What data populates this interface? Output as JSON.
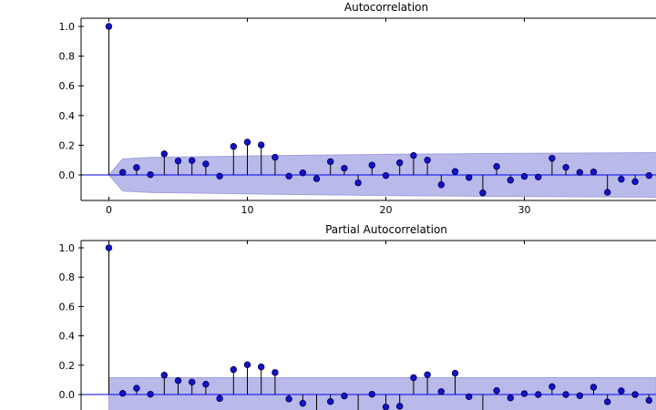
{
  "figure": {
    "background": "#ffffff",
    "colors": {
      "marker": "#1414cc",
      "marker_edge": "#000066",
      "stem": "#000000",
      "zero_line": "#0000ff",
      "band_fill": "#b9b9ea",
      "band_edge": "#a2a2dc",
      "spine": "#000000",
      "text": "#000000"
    }
  },
  "chart_data": [
    {
      "id": "acf",
      "type": "stem",
      "title": "Autocorrelation",
      "x": [
        0,
        1,
        2,
        3,
        4,
        5,
        6,
        7,
        8,
        9,
        10,
        11,
        12,
        13,
        14,
        15,
        16,
        17,
        18,
        19,
        20,
        21,
        22,
        23,
        24,
        25,
        26,
        27,
        28,
        29,
        30,
        31,
        32,
        33,
        34,
        35,
        36,
        37,
        38,
        39
      ],
      "values": [
        1.0,
        0.017,
        0.05,
        0.002,
        0.142,
        0.094,
        0.097,
        0.074,
        -0.008,
        0.192,
        0.221,
        0.202,
        0.119,
        -0.008,
        0.014,
        -0.025,
        0.09,
        0.045,
        -0.053,
        0.066,
        -0.004,
        0.082,
        0.131,
        0.1,
        -0.066,
        0.023,
        -0.017,
        -0.121,
        0.057,
        -0.035,
        -0.01,
        -0.014,
        0.112,
        0.051,
        0.017,
        0.02,
        -0.117,
        -0.029,
        -0.045,
        -0.004
      ],
      "xticks": {
        "values": [
          0,
          10,
          20,
          30
        ],
        "labels": [
          "0",
          "10",
          "20",
          "30"
        ],
        "labels_visible": true
      },
      "yticks": {
        "values": [
          1.0,
          0.8,
          0.6,
          0.4,
          0.2,
          0.0
        ],
        "labels": [
          "1.0",
          "0.8",
          "0.6",
          "0.4",
          "0.2",
          "0.0"
        ]
      },
      "xlim_visible": [
        -2.0,
        39.5
      ],
      "ylim_visible": [
        -0.17,
        1.06
      ],
      "grid": false,
      "legend": null,
      "confidence_band": {
        "shape": "wedge",
        "half_width_points": [
          [
            0,
            0
          ],
          [
            1,
            0.108
          ],
          [
            3,
            0.118
          ],
          [
            6,
            0.122
          ],
          [
            12,
            0.13
          ],
          [
            20,
            0.139
          ],
          [
            27,
            0.144
          ],
          [
            39.6,
            0.15
          ]
        ]
      }
    },
    {
      "id": "pacf",
      "type": "stem",
      "title": "Partial Autocorrelation",
      "x": [
        0,
        1,
        2,
        3,
        4,
        5,
        6,
        7,
        8,
        9,
        10,
        11,
        12,
        13,
        14,
        15,
        16,
        17,
        18,
        19,
        20,
        21,
        22,
        23,
        24,
        25,
        26,
        27,
        28,
        29,
        30,
        31,
        32,
        33,
        34,
        35,
        36,
        37,
        38,
        39
      ],
      "values": [
        1.0,
        0.008,
        0.043,
        0.002,
        0.132,
        0.095,
        0.085,
        0.07,
        -0.027,
        0.17,
        0.203,
        0.188,
        0.15,
        -0.03,
        -0.06,
        -0.13,
        -0.048,
        -0.01,
        -0.15,
        0.002,
        -0.085,
        -0.08,
        0.115,
        0.135,
        0.02,
        0.145,
        -0.015,
        -0.14,
        0.027,
        -0.023,
        0.006,
        0.0,
        0.054,
        0.0,
        -0.008,
        0.05,
        -0.05,
        0.025,
        0.0,
        -0.04
      ],
      "xticks": {
        "values": [
          0,
          10,
          20,
          30
        ],
        "labels": [
          "0",
          "10",
          "20",
          "30"
        ],
        "labels_visible": false
      },
      "yticks": {
        "values": [
          1.0,
          0.8,
          0.6,
          0.4,
          0.2,
          0.0
        ],
        "labels": [
          "1.0",
          "0.8",
          "0.6",
          "0.4",
          "0.2",
          "0.0"
        ]
      },
      "xlim_visible": [
        -2.0,
        39.5
      ],
      "ylim_visible": [
        -0.105,
        1.05
      ],
      "grid": false,
      "legend": null,
      "confidence_band": {
        "shape": "rect",
        "start_lag": 0,
        "half_width": 0.115
      }
    }
  ]
}
